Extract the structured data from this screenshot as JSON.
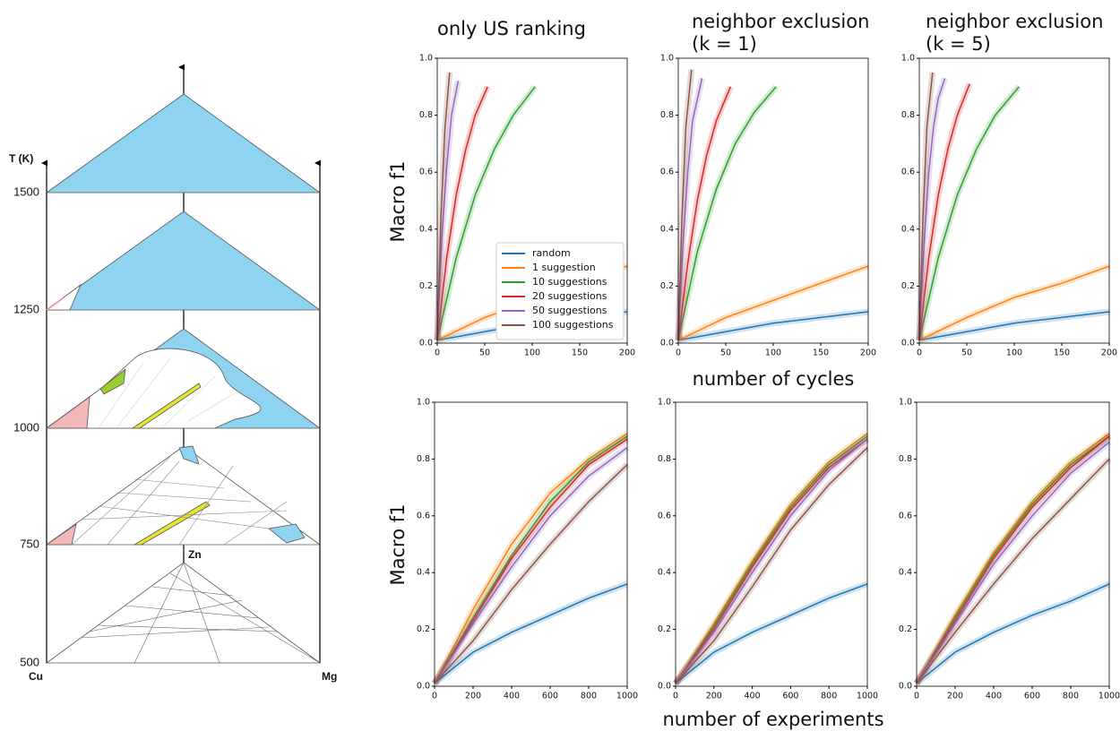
{
  "diagram": {
    "axis_label": "T (K)",
    "temperatures": [
      1500,
      1250,
      1000,
      750,
      500
    ],
    "elements": {
      "left": "Cu",
      "right": "Mg",
      "top": "Zn"
    }
  },
  "figure": {
    "column_titles": [
      [
        "only US ranking"
      ],
      [
        "neighbor exclusion",
        "(k = 1)"
      ],
      [
        "neighbor exclusion",
        "(k = 5)"
      ]
    ],
    "row_xlabels": [
      "number of cycles",
      "number of experiments"
    ],
    "row_ylabels": [
      "Macro f1",
      "Macro f1"
    ]
  },
  "chart_data": [
    {
      "type": "line",
      "xlim": [
        0,
        200
      ],
      "xticks": [
        0,
        50,
        100,
        150,
        200
      ],
      "ylim": [
        0,
        1
      ],
      "yticks": [
        {
          "value": 0,
          "label": "0.0"
        },
        0.2,
        0.4,
        0.6,
        0.8,
        {
          "value": 1,
          "label": "1.0"
        }
      ],
      "legend": "lower right",
      "series": [
        {
          "name": "random",
          "color": "#1f77b4",
          "x": [
            0,
            50,
            100,
            150,
            200
          ],
          "values": [
            0.01,
            0.04,
            0.07,
            0.09,
            0.11
          ]
        },
        {
          "name": "1 suggestion",
          "color": "#ff7f0e",
          "x": [
            0,
            50,
            100,
            150,
            200
          ],
          "values": [
            0.01,
            0.09,
            0.15,
            0.21,
            0.27
          ]
        },
        {
          "name": "10 suggestions",
          "color": "#2ca02c",
          "x": [
            0,
            20,
            40,
            60,
            80,
            103
          ],
          "values": [
            0.01,
            0.3,
            0.52,
            0.68,
            0.8,
            0.9
          ]
        },
        {
          "name": "20 suggestions",
          "color": "#d62728",
          "x": [
            0,
            10,
            20,
            30,
            40,
            53
          ],
          "values": [
            0.01,
            0.3,
            0.52,
            0.68,
            0.8,
            0.9
          ]
        },
        {
          "name": "50 suggestions",
          "color": "#9467bd",
          "x": [
            0,
            5,
            10,
            15,
            22
          ],
          "values": [
            0.01,
            0.38,
            0.62,
            0.8,
            0.92
          ]
        },
        {
          "name": "100 suggestions",
          "color": "#8c564b",
          "x": [
            0,
            4,
            8,
            13
          ],
          "values": [
            0.01,
            0.45,
            0.75,
            0.95
          ]
        }
      ]
    },
    {
      "type": "line",
      "xlim": [
        0,
        200
      ],
      "xticks": [
        0,
        50,
        100,
        150,
        200
      ],
      "ylim": [
        0,
        1
      ],
      "yticks": [
        {
          "value": 0,
          "label": "0.0"
        },
        0.2,
        0.4,
        0.6,
        0.8,
        {
          "value": 1,
          "label": "1.0"
        }
      ],
      "series": [
        {
          "color": "#1f77b4",
          "x": [
            0,
            50,
            100,
            150,
            200
          ],
          "values": [
            0.01,
            0.04,
            0.07,
            0.09,
            0.11
          ]
        },
        {
          "color": "#ff7f0e",
          "x": [
            0,
            50,
            100,
            150,
            200
          ],
          "values": [
            0.01,
            0.09,
            0.15,
            0.21,
            0.27
          ]
        },
        {
          "color": "#2ca02c",
          "x": [
            0,
            20,
            40,
            60,
            80,
            103
          ],
          "values": [
            0.01,
            0.32,
            0.54,
            0.7,
            0.81,
            0.9
          ]
        },
        {
          "color": "#d62728",
          "x": [
            0,
            10,
            20,
            30,
            40,
            55
          ],
          "values": [
            0.01,
            0.28,
            0.5,
            0.66,
            0.78,
            0.9
          ]
        },
        {
          "color": "#9467bd",
          "x": [
            0,
            5,
            10,
            15,
            25
          ],
          "values": [
            0.01,
            0.35,
            0.6,
            0.78,
            0.93
          ]
        },
        {
          "color": "#8c564b",
          "x": [
            0,
            4,
            8,
            14
          ],
          "values": [
            0.01,
            0.45,
            0.76,
            0.96
          ]
        }
      ]
    },
    {
      "type": "line",
      "xlim": [
        0,
        200
      ],
      "xticks": [
        0,
        50,
        100,
        150,
        200
      ],
      "ylim": [
        0,
        1
      ],
      "yticks": [
        {
          "value": 0,
          "label": "0.0"
        },
        0.2,
        0.4,
        0.6,
        0.8,
        {
          "value": 1,
          "label": "1.0"
        }
      ],
      "series": [
        {
          "color": "#1f77b4",
          "x": [
            0,
            50,
            100,
            150,
            200
          ],
          "values": [
            0.01,
            0.04,
            0.07,
            0.09,
            0.11
          ]
        },
        {
          "color": "#ff7f0e",
          "x": [
            0,
            50,
            100,
            150,
            200
          ],
          "values": [
            0.01,
            0.09,
            0.16,
            0.21,
            0.27
          ]
        },
        {
          "color": "#2ca02c",
          "x": [
            0,
            20,
            40,
            60,
            80,
            105
          ],
          "values": [
            0.01,
            0.3,
            0.52,
            0.68,
            0.8,
            0.9
          ]
        },
        {
          "color": "#d62728",
          "x": [
            0,
            10,
            20,
            30,
            40,
            53
          ],
          "values": [
            0.01,
            0.3,
            0.52,
            0.68,
            0.8,
            0.91
          ]
        },
        {
          "color": "#9467bd",
          "x": [
            0,
            5,
            10,
            15,
            20,
            27
          ],
          "values": [
            0.01,
            0.35,
            0.6,
            0.76,
            0.86,
            0.93
          ]
        },
        {
          "color": "#8c564b",
          "x": [
            0,
            4,
            8,
            14
          ],
          "values": [
            0.01,
            0.45,
            0.76,
            0.95
          ]
        }
      ]
    },
    {
      "type": "line",
      "x": [
        0,
        200,
        400,
        600,
        800,
        1000
      ],
      "xlim": [
        0,
        1000
      ],
      "xticks": [
        0,
        200,
        400,
        600,
        800,
        1000
      ],
      "ylim": [
        0,
        1
      ],
      "yticks": [
        {
          "value": 0,
          "label": "0.0"
        },
        0.2,
        0.4,
        0.6,
        0.8,
        {
          "value": 1,
          "label": "1.0"
        }
      ],
      "series": [
        {
          "color": "#1f77b4",
          "values": [
            0.01,
            0.12,
            0.19,
            0.25,
            0.31,
            0.36
          ]
        },
        {
          "color": "#ff7f0e",
          "values": [
            0.01,
            0.27,
            0.5,
            0.68,
            0.8,
            0.89
          ]
        },
        {
          "color": "#2ca02c",
          "values": [
            0.01,
            0.24,
            0.46,
            0.65,
            0.79,
            0.88
          ]
        },
        {
          "color": "#d62728",
          "values": [
            0.01,
            0.23,
            0.45,
            0.63,
            0.78,
            0.87
          ]
        },
        {
          "color": "#9467bd",
          "values": [
            0.01,
            0.22,
            0.42,
            0.6,
            0.74,
            0.84
          ]
        },
        {
          "color": "#8c564b",
          "values": [
            0.01,
            0.16,
            0.34,
            0.5,
            0.65,
            0.78
          ]
        }
      ]
    },
    {
      "type": "line",
      "x": [
        0,
        200,
        400,
        600,
        800,
        1000
      ],
      "xlim": [
        0,
        1000
      ],
      "xticks": [
        0,
        200,
        400,
        600,
        800,
        1000
      ],
      "ylim": [
        0,
        1
      ],
      "yticks": [
        {
          "value": 0,
          "label": "0.0"
        },
        0.2,
        0.4,
        0.6,
        0.8,
        {
          "value": 1,
          "label": "1.0"
        }
      ],
      "series": [
        {
          "color": "#1f77b4",
          "values": [
            0.01,
            0.12,
            0.19,
            0.25,
            0.31,
            0.36
          ]
        },
        {
          "color": "#ff7f0e",
          "values": [
            0.01,
            0.22,
            0.44,
            0.64,
            0.79,
            0.89
          ]
        },
        {
          "color": "#2ca02c",
          "values": [
            0.01,
            0.21,
            0.43,
            0.63,
            0.78,
            0.88
          ]
        },
        {
          "color": "#d62728",
          "values": [
            0.01,
            0.2,
            0.42,
            0.62,
            0.77,
            0.87
          ]
        },
        {
          "color": "#9467bd",
          "values": [
            0.01,
            0.19,
            0.4,
            0.6,
            0.76,
            0.87
          ]
        },
        {
          "color": "#8c564b",
          "values": [
            0.01,
            0.16,
            0.35,
            0.55,
            0.71,
            0.84
          ]
        }
      ]
    },
    {
      "type": "line",
      "x": [
        0,
        200,
        400,
        600,
        800,
        1000
      ],
      "xlim": [
        0,
        1000
      ],
      "xticks": [
        0,
        200,
        400,
        600,
        800,
        1000
      ],
      "ylim": [
        0,
        1
      ],
      "yticks": [
        {
          "value": 0,
          "label": "0.0"
        },
        0.2,
        0.4,
        0.6,
        0.8,
        {
          "value": 1,
          "label": "1.0"
        }
      ],
      "series": [
        {
          "color": "#1f77b4",
          "values": [
            0.01,
            0.12,
            0.19,
            0.25,
            0.3,
            0.36
          ]
        },
        {
          "color": "#ff7f0e",
          "values": [
            0.01,
            0.25,
            0.47,
            0.65,
            0.79,
            0.89
          ]
        },
        {
          "color": "#2ca02c",
          "values": [
            0.01,
            0.24,
            0.46,
            0.64,
            0.78,
            0.88
          ]
        },
        {
          "color": "#d62728",
          "values": [
            0.01,
            0.23,
            0.45,
            0.63,
            0.77,
            0.88
          ]
        },
        {
          "color": "#9467bd",
          "values": [
            0.01,
            0.22,
            0.43,
            0.6,
            0.75,
            0.86
          ]
        },
        {
          "color": "#8c564b",
          "values": [
            0.01,
            0.19,
            0.36,
            0.52,
            0.66,
            0.8
          ]
        }
      ]
    }
  ]
}
